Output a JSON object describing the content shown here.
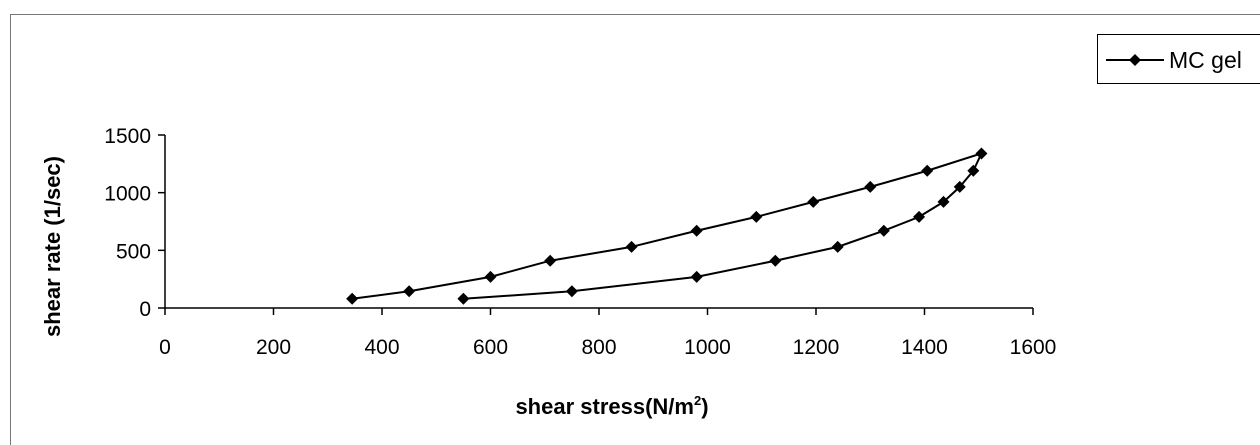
{
  "chart_data": {
    "type": "scatter",
    "title": "",
    "xlabel": "shear stress(N/m",
    "xlabel_superscript": "2",
    "xlabel_suffix": ")",
    "ylabel": "shear rate (1/sec)",
    "xlim": [
      0,
      1600
    ],
    "ylim": [
      0,
      1500
    ],
    "x_ticks": [
      0,
      200,
      400,
      600,
      800,
      1000,
      1200,
      1400,
      1600
    ],
    "y_ticks": [
      0,
      500,
      1000,
      1500
    ],
    "grid": false,
    "legend_position": "top-right",
    "series": [
      {
        "name": "MC gel",
        "color": "#000000",
        "marker": "diamond",
        "points": [
          [
            345,
            80
          ],
          [
            450,
            145
          ],
          [
            600,
            270
          ],
          [
            710,
            410
          ],
          [
            860,
            530
          ],
          [
            980,
            670
          ],
          [
            1090,
            790
          ],
          [
            1195,
            920
          ],
          [
            1300,
            1050
          ],
          [
            1405,
            1190
          ],
          [
            1505,
            1340
          ],
          [
            1490,
            1190
          ],
          [
            1465,
            1050
          ],
          [
            1435,
            920
          ],
          [
            1390,
            790
          ],
          [
            1325,
            670
          ],
          [
            1240,
            530
          ],
          [
            1125,
            410
          ],
          [
            980,
            270
          ],
          [
            750,
            145
          ],
          [
            550,
            80
          ]
        ]
      }
    ]
  }
}
